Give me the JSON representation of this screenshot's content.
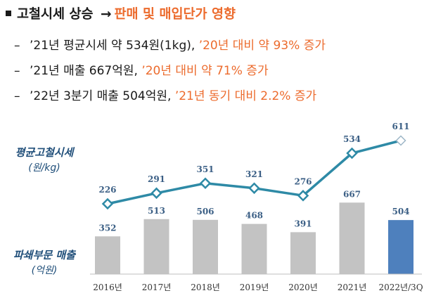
{
  "headline": {
    "title": "고철시세 상승",
    "arrow": "→",
    "subtitle": "판매 및 매입단가 영향"
  },
  "bullets": [
    {
      "dash": "–",
      "main": "’21년 평균시세  약 534원(1kg),",
      "highlight": "’20년 대비 약 93% 증가"
    },
    {
      "dash": "–",
      "main": "’21년 매출 667억원,",
      "highlight": "’20년 대비 약 71% 증가"
    },
    {
      "dash": "–",
      "main": "’22년  3분기 매출 504억원,",
      "highlight": "’21년 동기 대비 2.2% 증가"
    }
  ],
  "line_axis": {
    "title": "평균고철시세",
    "unit": "(원/kg)"
  },
  "bar_axis": {
    "title": "파쇄부문 매출",
    "unit": "(억원)"
  },
  "colors": {
    "line": "#2e8aa6",
    "bar": "#c3c3c3",
    "bar_highlight": "#4e80bd",
    "text_highlight": "#ec6b2d",
    "axis_title": "#1f4e79"
  },
  "chart_data": [
    {
      "type": "line",
      "categories": [
        "2016년",
        "2017년",
        "2018년",
        "2019년",
        "2020년",
        "2021년",
        "2022년/3Q"
      ],
      "series": [
        {
          "values": [
            226,
            291,
            351,
            321,
            276,
            534,
            611
          ]
        }
      ],
      "ylabel": "평균고철시세 (원/kg)",
      "ylim": [
        200,
        650
      ],
      "last_point_style": "hollow"
    },
    {
      "type": "bar",
      "categories": [
        "2016년",
        "2017년",
        "2018년",
        "2019년",
        "2020년",
        "2021년",
        "2022년/3Q"
      ],
      "values": [
        352,
        513,
        506,
        468,
        391,
        667,
        504
      ],
      "ylabel": "파쇄부문 매출 (억원)",
      "ylim": [
        0,
        680
      ],
      "highlight_index": 6
    }
  ]
}
